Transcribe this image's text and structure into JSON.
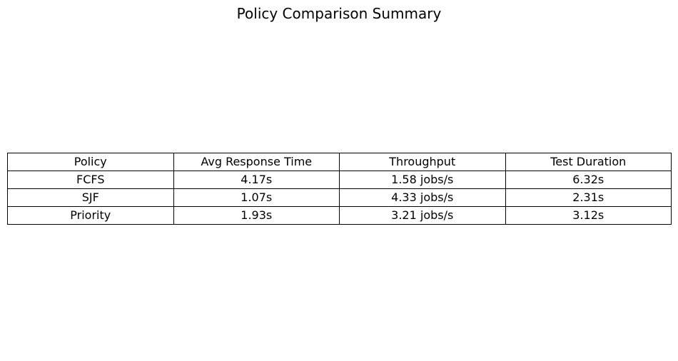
{
  "chart_data": {
    "type": "table",
    "title": "Policy Comparison Summary",
    "columns": [
      "Policy",
      "Avg Response Time",
      "Throughput",
      "Test Duration"
    ],
    "rows": [
      [
        "FCFS",
        "4.17s",
        "1.58 jobs/s",
        "6.32s"
      ],
      [
        "SJF",
        "1.07s",
        "4.33 jobs/s",
        "2.31s"
      ],
      [
        "Priority",
        "1.93s",
        "3.21 jobs/s",
        "3.12s"
      ]
    ]
  }
}
